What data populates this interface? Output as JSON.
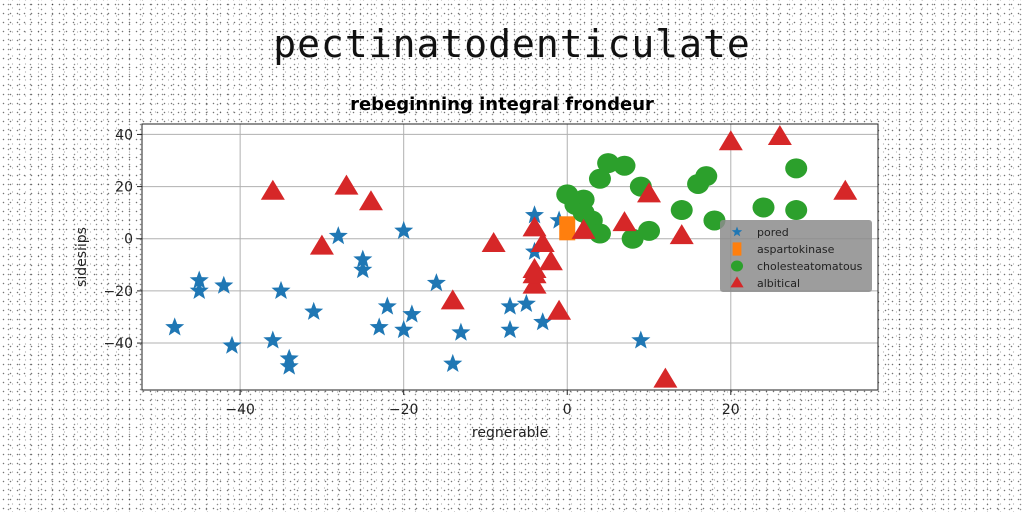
{
  "suptitle": "pectinatodenticulate",
  "chart_data": {
    "type": "scatter",
    "title": "rebeginning integral frondeur",
    "xlabel": "regnerable",
    "ylabel": "sidesiips",
    "xlim": [
      -52,
      38
    ],
    "ylim": [
      -58,
      44
    ],
    "xticks": [
      -40,
      -20,
      0,
      20
    ],
    "yticks": [
      -40,
      -20,
      0,
      20,
      40
    ],
    "grid": true,
    "legend_position": "right",
    "series": [
      {
        "name": "pored",
        "marker": "star",
        "color": "#1f77b4",
        "points": [
          [
            -48,
            -34
          ],
          [
            -45,
            -16
          ],
          [
            -45,
            -20
          ],
          [
            -42,
            -18
          ],
          [
            -41,
            -41
          ],
          [
            -36,
            -39
          ],
          [
            -35,
            -20
          ],
          [
            -34,
            -46
          ],
          [
            -34,
            -49
          ],
          [
            -31,
            -28
          ],
          [
            -28,
            1
          ],
          [
            -25,
            -8
          ],
          [
            -25,
            -12
          ],
          [
            -23,
            -34
          ],
          [
            -22,
            -26
          ],
          [
            -20,
            3
          ],
          [
            -20,
            -35
          ],
          [
            -19,
            -29
          ],
          [
            -16,
            -17
          ],
          [
            -14,
            -48
          ],
          [
            -13,
            -36
          ],
          [
            -7,
            -35
          ],
          [
            -7,
            -26
          ],
          [
            -5,
            -25
          ],
          [
            -4,
            9
          ],
          [
            -4,
            -5
          ],
          [
            -3,
            -32
          ],
          [
            -1,
            7
          ],
          [
            9,
            -39
          ]
        ]
      },
      {
        "name": "aspartokinase",
        "marker": "square",
        "color": "#ff7f0e",
        "points": [
          [
            0,
            4
          ]
        ]
      },
      {
        "name": "cholesteatomatous",
        "marker": "circle",
        "color": "#2ca02c",
        "points": [
          [
            0,
            17
          ],
          [
            1,
            13
          ],
          [
            2,
            15
          ],
          [
            2,
            10
          ],
          [
            3,
            7
          ],
          [
            4,
            2
          ],
          [
            4,
            23
          ],
          [
            5,
            29
          ],
          [
            7,
            28
          ],
          [
            8,
            0
          ],
          [
            9,
            20
          ],
          [
            10,
            3
          ],
          [
            14,
            11
          ],
          [
            16,
            21
          ],
          [
            17,
            24
          ],
          [
            18,
            7
          ],
          [
            24,
            12
          ],
          [
            28,
            11
          ],
          [
            28,
            27
          ]
        ]
      },
      {
        "name": "albitical",
        "marker": "triangle",
        "color": "#d62728",
        "points": [
          [
            -36,
            18
          ],
          [
            -30,
            -3
          ],
          [
            -27,
            20
          ],
          [
            -24,
            14
          ],
          [
            -14,
            -24
          ],
          [
            -9,
            -2
          ],
          [
            -4,
            4
          ],
          [
            -4,
            -12
          ],
          [
            -4,
            -18
          ],
          [
            -4,
            -14
          ],
          [
            -3,
            -2
          ],
          [
            -2,
            -9
          ],
          [
            -1,
            -28
          ],
          [
            2,
            3
          ],
          [
            7,
            6
          ],
          [
            10,
            17
          ],
          [
            14,
            1
          ],
          [
            12,
            -54
          ],
          [
            20,
            37
          ],
          [
            26,
            39
          ],
          [
            34,
            18
          ]
        ]
      }
    ]
  }
}
